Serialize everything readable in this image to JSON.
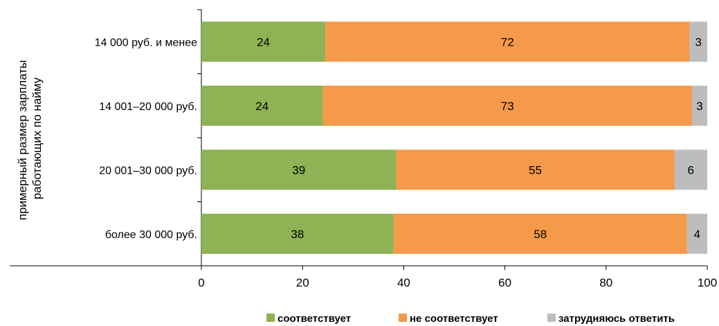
{
  "chart_data": {
    "type": "bar",
    "orientation": "horizontal",
    "stacked": true,
    "title": "",
    "ylabel_lines": [
      "примерный размер зарплаты",
      "работающих по найму"
    ],
    "xlabel": "",
    "xlim": [
      0,
      100
    ],
    "xticks": [
      0,
      20,
      40,
      60,
      80,
      100
    ],
    "categories": [
      "14 000 руб. и менее",
      "14 001–20 000 руб.",
      "20 001–30 000 руб.",
      "более 30 000 руб."
    ],
    "series": [
      {
        "name": "соответствует",
        "color": "#8db354",
        "values": [
          24,
          24,
          39,
          38
        ],
        "extent": [
          24.5,
          24,
          38.5,
          38
        ]
      },
      {
        "name": "не соответствует",
        "color": "#f49a4a",
        "values": [
          72,
          73,
          55,
          58
        ],
        "extent": [
          72,
          73,
          55,
          58
        ]
      },
      {
        "name": "затрудняюсь ответить",
        "color": "#bdbdbd",
        "values": [
          3,
          3,
          6,
          4
        ],
        "extent": [
          3.5,
          3,
          6.5,
          4
        ]
      }
    ],
    "grid": false,
    "legend_position": "bottom"
  }
}
